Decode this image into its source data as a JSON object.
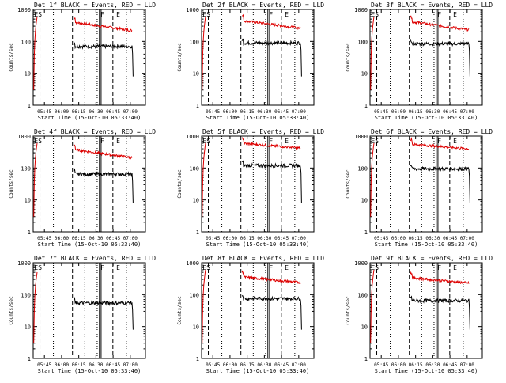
{
  "chart_data": [
    {
      "type": "line",
      "title": "Det 1f BLACK = Events, RED = LLD",
      "ylabel": "Counts/sec",
      "xlabel": "Start Time (15-Oct-10 05:33:40)",
      "y_scale": "log",
      "ylim": [
        1,
        1000
      ],
      "y_ticks": [
        "1",
        "10",
        "100",
        "1000"
      ],
      "x_tick_labels": [
        "05:45",
        "06:00",
        "06:15",
        "06:30",
        "06:45",
        "07:00"
      ],
      "annotations": [
        "ES",
        "F",
        "E"
      ],
      "black_level": 70,
      "red_start": 400,
      "red_end": 220,
      "red_pre": true,
      "dash_x": [
        0.06,
        0.35,
        0.72
      ],
      "dot_x": [
        0.17,
        0.46,
        0.58,
        0.83
      ],
      "vsolid_x": 0.6,
      "black_start_x": 0.35,
      "black_end_x": 0.88,
      "red_start_x": 0.35
    },
    {
      "type": "line",
      "title": "Det 2f BLACK = Events, RED = LLD",
      "ylabel": "Counts/sec",
      "xlabel": "Start Time (15-Oct-10 05:33:40)",
      "y_scale": "log",
      "ylim": [
        1,
        1000
      ],
      "y_ticks": [
        "1",
        "10",
        "100",
        "1000"
      ],
      "x_tick_labels": [
        "05:45",
        "06:00",
        "06:15",
        "06:30",
        "06:45",
        "07:00"
      ],
      "annotations": [
        "ES",
        "F",
        "E"
      ],
      "black_level": 90,
      "red_start": 450,
      "red_end": 260,
      "red_pre": true
    },
    {
      "type": "line",
      "title": "Det 3f BLACK = Events, RED = LLD",
      "ylabel": "Counts/sec",
      "xlabel": "Start Time (15-Oct-10 05:33:40)",
      "y_scale": "log",
      "ylim": [
        1,
        1000
      ],
      "y_ticks": [
        "1",
        "10",
        "100",
        "1000"
      ],
      "x_tick_labels": [
        "05:45",
        "06:00",
        "06:15",
        "06:30",
        "06:45",
        "07:00"
      ],
      "annotations": [
        "ES",
        "F",
        "E"
      ],
      "black_level": 85,
      "red_start": 420,
      "red_end": 230,
      "red_pre": true
    },
    {
      "type": "line",
      "title": "Det 4f BLACK = Events, RED = LLD",
      "ylabel": "Counts/sec",
      "xlabel": "Start Time (15-Oct-10 05:33:40)",
      "y_scale": "log",
      "ylim": [
        1,
        1000
      ],
      "y_ticks": [
        "1",
        "10",
        "100",
        "1000"
      ],
      "x_tick_labels": [
        "05:45",
        "06:00",
        "06:15",
        "06:30",
        "06:45",
        "07:00"
      ],
      "annotations": [
        "ES",
        "F",
        "E"
      ],
      "black_level": 65,
      "red_start": 380,
      "red_end": 210,
      "red_pre": true
    },
    {
      "type": "line",
      "title": "Det 5f BLACK = Events, RED = LLD",
      "ylabel": "Counts/sec",
      "xlabel": "Start Time (15-Oct-10 05:33:40)",
      "y_scale": "log",
      "ylim": [
        1,
        1000
      ],
      "y_ticks": [
        "1",
        "10",
        "100",
        "1000"
      ],
      "x_tick_labels": [
        "05:45",
        "06:00",
        "06:15",
        "06:30",
        "06:45",
        "07:00"
      ],
      "annotations": [
        "ES",
        "F",
        "E"
      ],
      "black_level": 120,
      "red_start": 600,
      "red_end": 420,
      "red_pre": true
    },
    {
      "type": "line",
      "title": "Det 6f BLACK = Events, RED = LLD",
      "ylabel": "Counts/sec",
      "xlabel": "Start Time (15-Oct-10 05:33:40)",
      "y_scale": "log",
      "ylim": [
        1,
        1000
      ],
      "y_ticks": [
        "1",
        "10",
        "100",
        "1000"
      ],
      "x_tick_labels": [
        "05:45",
        "06:00",
        "06:15",
        "06:30",
        "06:45",
        "07:00"
      ],
      "annotations": [
        "ES",
        "F",
        "E"
      ],
      "black_level": 95,
      "red_start": 560,
      "red_end": 400,
      "red_pre": true
    },
    {
      "type": "line",
      "title": "Det 7f BLACK = Events, RED = LLD",
      "ylabel": "Counts/sec",
      "xlabel": "Start Time (15-Oct-10 05:33:40)",
      "y_scale": "log",
      "ylim": [
        1,
        1000
      ],
      "y_ticks": [
        "1",
        "10",
        "100",
        "1000"
      ],
      "x_tick_labels": [
        "05:45",
        "06:00",
        "06:15",
        "06:30",
        "06:45",
        "07:00"
      ],
      "annotations": [
        "ES",
        "F",
        "E"
      ],
      "black_level": 55,
      "red_start": 0,
      "red_end": 0,
      "red_pre": true
    },
    {
      "type": "line",
      "title": "Det 8f BLACK = Events, RED = LLD",
      "ylabel": "Counts/sec",
      "xlabel": "Start Time (15-Oct-10 05:33:40)",
      "y_scale": "log",
      "ylim": [
        1,
        1000
      ],
      "y_ticks": [
        "1",
        "10",
        "100",
        "1000"
      ],
      "x_tick_labels": [
        "05:45",
        "06:00",
        "06:15",
        "06:30",
        "06:45",
        "07:00"
      ],
      "annotations": [
        "ES",
        "F",
        "E"
      ],
      "black_level": 75,
      "red_start": 360,
      "red_end": 240,
      "red_pre": true
    },
    {
      "type": "line",
      "title": "Det 9f BLACK = Events, RED = LLD",
      "ylabel": "Counts/sec",
      "xlabel": "Start Time (15-Oct-10 05:33:40)",
      "y_scale": "log",
      "ylim": [
        1,
        1000
      ],
      "y_ticks": [
        "1",
        "10",
        "100",
        "1000"
      ],
      "x_tick_labels": [
        "05:45",
        "06:00",
        "06:15",
        "06:30",
        "06:45",
        "07:00"
      ],
      "annotations": [
        "ES",
        "F",
        "E"
      ],
      "black_level": 65,
      "red_start": 340,
      "red_end": 230,
      "red_pre": true
    }
  ],
  "colors": {
    "events": "#000000",
    "lld": "#dd0000",
    "background": "#ffffff"
  }
}
